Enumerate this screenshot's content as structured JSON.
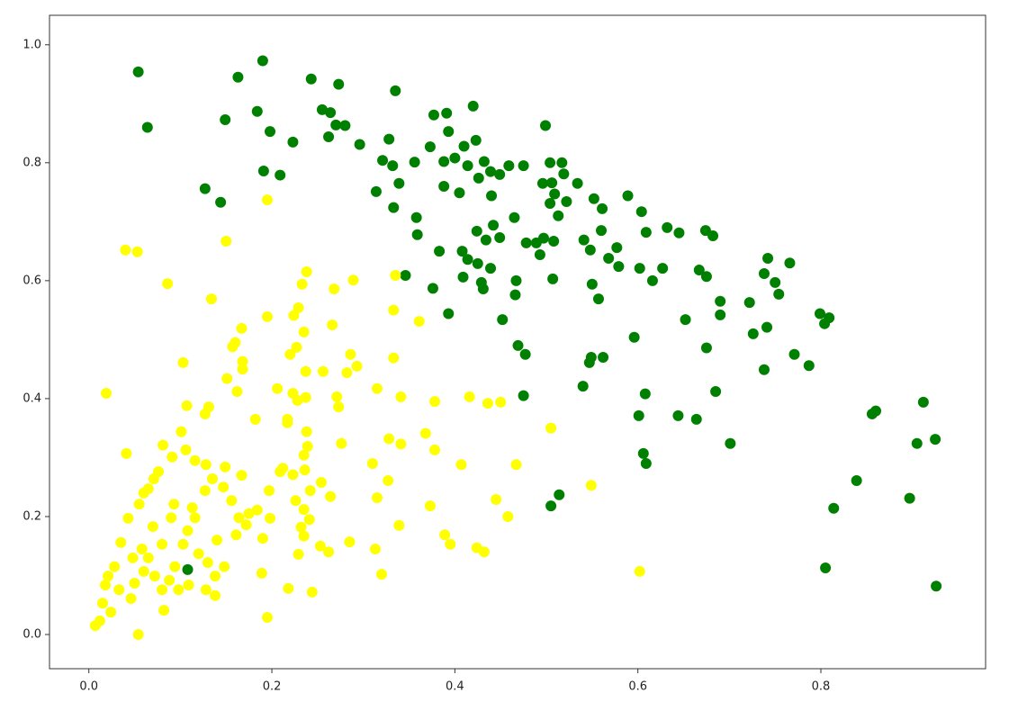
{
  "chart_data": {
    "type": "scatter",
    "xlim": [
      -0.043,
      0.98
    ],
    "ylim": [
      -0.058,
      1.05
    ],
    "xticks": [
      {
        "value": 0,
        "label": "0.0"
      },
      0.2,
      0.4,
      0.6,
      0.8
    ],
    "yticks": [
      {
        "value": 0,
        "label": "0.0"
      },
      0.2,
      0.4,
      0.6,
      0.8,
      {
        "value": 1,
        "label": "1.0"
      }
    ],
    "series": [
      {
        "color": "#008000",
        "x": [
          0.054,
          0.064,
          0.19,
          0.163,
          0.243,
          0.273,
          0.335,
          0.184,
          0.149,
          0.198,
          0.255,
          0.264,
          0.27,
          0.28,
          0.262,
          0.223,
          0.296,
          0.328,
          0.191,
          0.209,
          0.127,
          0.144,
          0.321,
          0.332,
          0.314,
          0.339,
          0.333,
          0.358,
          0.359,
          0.346,
          0.377,
          0.391,
          0.393,
          0.42,
          0.373,
          0.356,
          0.388,
          0.4,
          0.41,
          0.423,
          0.414,
          0.432,
          0.439,
          0.426,
          0.405,
          0.388,
          0.449,
          0.459,
          0.475,
          0.44,
          0.465,
          0.442,
          0.424,
          0.434,
          0.408,
          0.383,
          0.393,
          0.376,
          0.414,
          0.425,
          0.439,
          0.409,
          0.429,
          0.431,
          0.449,
          0.466,
          0.452,
          0.467,
          0.478,
          0.489,
          0.499,
          0.504,
          0.496,
          0.506,
          0.517,
          0.519,
          0.509,
          0.504,
          0.513,
          0.522,
          0.534,
          0.497,
          0.508,
          0.507,
          0.493,
          0.469,
          0.477,
          0.475,
          0.541,
          0.548,
          0.56,
          0.561,
          0.552,
          0.568,
          0.579,
          0.577,
          0.557,
          0.55,
          0.549,
          0.547,
          0.562,
          0.54,
          0.596,
          0.589,
          0.604,
          0.609,
          0.602,
          0.616,
          0.601,
          0.606,
          0.609,
          0.608,
          0.505,
          0.514,
          0.627,
          0.632,
          0.645,
          0.652,
          0.644,
          0.664,
          0.667,
          0.674,
          0.682,
          0.675,
          0.675,
          0.685,
          0.69,
          0.69,
          0.701,
          0.722,
          0.726,
          0.738,
          0.742,
          0.741,
          0.738,
          0.75,
          0.754,
          0.766,
          0.771,
          0.787,
          0.799,
          0.809,
          0.804,
          0.839,
          0.856,
          0.86,
          0.897,
          0.905,
          0.912,
          0.925,
          0.926,
          0.814,
          0.805,
          0.108
        ],
        "y": [
          0.954,
          0.86,
          0.973,
          0.945,
          0.942,
          0.933,
          0.922,
          0.887,
          0.873,
          0.853,
          0.89,
          0.885,
          0.864,
          0.863,
          0.844,
          0.835,
          0.831,
          0.84,
          0.786,
          0.779,
          0.756,
          0.733,
          0.804,
          0.795,
          0.751,
          0.765,
          0.724,
          0.707,
          0.678,
          0.609,
          0.881,
          0.884,
          0.853,
          0.896,
          0.827,
          0.801,
          0.802,
          0.808,
          0.828,
          0.838,
          0.795,
          0.802,
          0.785,
          0.774,
          0.749,
          0.76,
          0.78,
          0.795,
          0.795,
          0.744,
          0.707,
          0.694,
          0.684,
          0.669,
          0.65,
          0.65,
          0.544,
          0.587,
          0.636,
          0.629,
          0.621,
          0.606,
          0.597,
          0.586,
          0.673,
          0.576,
          0.534,
          0.6,
          0.664,
          0.664,
          0.863,
          0.8,
          0.765,
          0.766,
          0.8,
          0.781,
          0.747,
          0.731,
          0.71,
          0.734,
          0.765,
          0.672,
          0.667,
          0.603,
          0.644,
          0.49,
          0.475,
          0.405,
          0.669,
          0.652,
          0.685,
          0.722,
          0.739,
          0.638,
          0.624,
          0.656,
          0.569,
          0.594,
          0.47,
          0.461,
          0.47,
          0.421,
          0.504,
          0.744,
          0.717,
          0.682,
          0.621,
          0.6,
          0.371,
          0.307,
          0.29,
          0.408,
          0.218,
          0.237,
          0.621,
          0.69,
          0.681,
          0.534,
          0.371,
          0.365,
          0.618,
          0.685,
          0.676,
          0.607,
          0.486,
          0.412,
          0.565,
          0.542,
          0.324,
          0.563,
          0.51,
          0.612,
          0.638,
          0.521,
          0.449,
          0.597,
          0.577,
          0.63,
          0.475,
          0.456,
          0.544,
          0.537,
          0.527,
          0.261,
          0.374,
          0.379,
          0.231,
          0.324,
          0.394,
          0.331,
          0.082,
          0.214,
          0.113,
          0.11
        ]
      },
      {
        "color": "#ffff00",
        "x": [
          0.195,
          0.15,
          0.04,
          0.053,
          0.134,
          0.086,
          0.238,
          0.233,
          0.268,
          0.289,
          0.335,
          0.195,
          0.224,
          0.229,
          0.235,
          0.266,
          0.333,
          0.361,
          0.019,
          0.103,
          0.157,
          0.167,
          0.16,
          0.168,
          0.168,
          0.151,
          0.162,
          0.107,
          0.131,
          0.127,
          0.182,
          0.206,
          0.22,
          0.227,
          0.237,
          0.223,
          0.228,
          0.237,
          0.256,
          0.271,
          0.273,
          0.282,
          0.286,
          0.293,
          0.333,
          0.315,
          0.341,
          0.378,
          0.416,
          0.436,
          0.45,
          0.368,
          0.378,
          0.328,
          0.341,
          0.276,
          0.217,
          0.217,
          0.238,
          0.239,
          0.235,
          0.236,
          0.212,
          0.209,
          0.223,
          0.31,
          0.327,
          0.407,
          0.467,
          0.505,
          0.549,
          0.445,
          0.458,
          0.339,
          0.315,
          0.313,
          0.32,
          0.373,
          0.389,
          0.395,
          0.424,
          0.432,
          0.602,
          0.285,
          0.262,
          0.253,
          0.229,
          0.244,
          0.218,
          0.195,
          0.189,
          0.254,
          0.264,
          0.242,
          0.226,
          0.235,
          0.241,
          0.232,
          0.235,
          0.197,
          0.198,
          0.19,
          0.172,
          0.175,
          0.184,
          0.167,
          0.149,
          0.128,
          0.135,
          0.127,
          0.147,
          0.156,
          0.106,
          0.091,
          0.081,
          0.041,
          0.116,
          0.101,
          0.076,
          0.071,
          0.065,
          0.06,
          0.055,
          0.043,
          0.035,
          0.021,
          0.018,
          0.015,
          0.007,
          0.012,
          0.024,
          0.033,
          0.046,
          0.05,
          0.054,
          0.06,
          0.065,
          0.072,
          0.08,
          0.082,
          0.088,
          0.094,
          0.098,
          0.103,
          0.108,
          0.116,
          0.12,
          0.128,
          0.138,
          0.14,
          0.148,
          0.13,
          0.138,
          0.109,
          0.08,
          0.07,
          0.058,
          0.048,
          0.028,
          0.09,
          0.093,
          0.113,
          0.161,
          0.164
        ],
        "y": [
          0.737,
          0.667,
          0.652,
          0.649,
          0.569,
          0.595,
          0.615,
          0.594,
          0.586,
          0.601,
          0.609,
          0.539,
          0.541,
          0.554,
          0.513,
          0.525,
          0.55,
          0.531,
          0.409,
          0.461,
          0.488,
          0.519,
          0.495,
          0.463,
          0.45,
          0.434,
          0.412,
          0.388,
          0.386,
          0.374,
          0.365,
          0.417,
          0.475,
          0.487,
          0.446,
          0.409,
          0.397,
          0.402,
          0.446,
          0.403,
          0.386,
          0.444,
          0.475,
          0.455,
          0.469,
          0.417,
          0.403,
          0.395,
          0.403,
          0.392,
          0.394,
          0.341,
          0.313,
          0.332,
          0.323,
          0.324,
          0.365,
          0.359,
          0.344,
          0.319,
          0.304,
          0.279,
          0.282,
          0.276,
          0.271,
          0.29,
          0.261,
          0.288,
          0.288,
          0.35,
          0.253,
          0.229,
          0.2,
          0.185,
          0.232,
          0.145,
          0.102,
          0.218,
          0.169,
          0.153,
          0.147,
          0.14,
          0.107,
          0.157,
          0.14,
          0.15,
          0.136,
          0.072,
          0.078,
          0.029,
          0.104,
          0.258,
          0.234,
          0.244,
          0.227,
          0.212,
          0.195,
          0.182,
          0.167,
          0.244,
          0.197,
          0.163,
          0.186,
          0.205,
          0.211,
          0.27,
          0.284,
          0.288,
          0.264,
          0.244,
          0.25,
          0.227,
          0.313,
          0.301,
          0.321,
          0.307,
          0.295,
          0.344,
          0.276,
          0.264,
          0.247,
          0.24,
          0.221,
          0.197,
          0.156,
          0.099,
          0.084,
          0.053,
          0.015,
          0.023,
          0.038,
          0.076,
          0.061,
          0.087,
          0,
          0.107,
          0.13,
          0.099,
          0.076,
          0.041,
          0.092,
          0.115,
          0.076,
          0.153,
          0.176,
          0.198,
          0.137,
          0.076,
          0.066,
          0.16,
          0.115,
          0.122,
          0.099,
          0.084,
          0.153,
          0.183,
          0.145,
          0.13,
          0.115,
          0.198,
          0.221,
          0.215,
          0.169,
          0.198
        ]
      }
    ]
  }
}
